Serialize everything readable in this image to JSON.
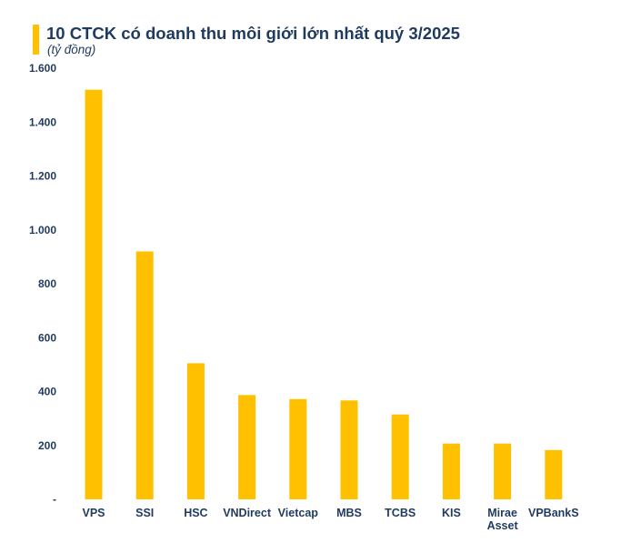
{
  "chart_data": {
    "type": "bar",
    "title": "10 CTCK có doanh thu môi giới lớn nhất quý 3/2025",
    "subtitle": "(tỷ đồng)",
    "xlabel": "",
    "ylabel": "",
    "categories": [
      "VPS",
      "SSI",
      "HSC",
      "VNDirect",
      "Vietcap",
      "MBS",
      "TCBS",
      "KIS",
      "Mirae Asset",
      "VPBankS"
    ],
    "category_lines": [
      [
        "VPS"
      ],
      [
        "SSI"
      ],
      [
        "HSC"
      ],
      [
        "VNDirect"
      ],
      [
        "Vietcap"
      ],
      [
        "MBS"
      ],
      [
        "TCBS"
      ],
      [
        "KIS"
      ],
      [
        "Mirae",
        "Asset"
      ],
      [
        "VPBankS"
      ]
    ],
    "values": [
      1520,
      920,
      505,
      387,
      372,
      367,
      315,
      207,
      207,
      183
    ],
    "ylim": [
      0,
      1600
    ],
    "yticks": [
      0,
      200,
      400,
      600,
      800,
      1000,
      1200,
      1400,
      1600
    ],
    "ytick_labels": [
      "-",
      "200",
      "400",
      "600",
      "800",
      "1.000",
      "1.200",
      "1.400",
      "1.600"
    ],
    "grid": false,
    "legend": "none",
    "colors": {
      "bar": "#FFC000",
      "text": "#1F3A5F",
      "accent": "#FFC000"
    }
  }
}
